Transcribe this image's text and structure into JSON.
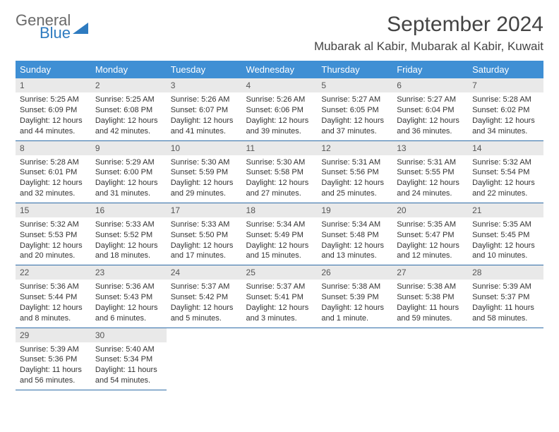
{
  "logo": {
    "word1": "General",
    "word2": "Blue",
    "text_color": "#6a6a6a",
    "accent_color": "#2e7bc0"
  },
  "title": {
    "month": "September 2024",
    "location": "Mubarak al Kabir, Mubarak al Kabir, Kuwait"
  },
  "theme": {
    "header_bg": "#3f8fd4",
    "header_fg": "#ffffff",
    "daynum_bg": "#e9e9e9",
    "row_border": "#2e6ca8"
  },
  "day_headers": [
    "Sunday",
    "Monday",
    "Tuesday",
    "Wednesday",
    "Thursday",
    "Friday",
    "Saturday"
  ],
  "days": [
    {
      "n": 1,
      "sr": "5:25 AM",
      "ss": "6:09 PM",
      "dl": "12 hours and 44 minutes."
    },
    {
      "n": 2,
      "sr": "5:25 AM",
      "ss": "6:08 PM",
      "dl": "12 hours and 42 minutes."
    },
    {
      "n": 3,
      "sr": "5:26 AM",
      "ss": "6:07 PM",
      "dl": "12 hours and 41 minutes."
    },
    {
      "n": 4,
      "sr": "5:26 AM",
      "ss": "6:06 PM",
      "dl": "12 hours and 39 minutes."
    },
    {
      "n": 5,
      "sr": "5:27 AM",
      "ss": "6:05 PM",
      "dl": "12 hours and 37 minutes."
    },
    {
      "n": 6,
      "sr": "5:27 AM",
      "ss": "6:04 PM",
      "dl": "12 hours and 36 minutes."
    },
    {
      "n": 7,
      "sr": "5:28 AM",
      "ss": "6:02 PM",
      "dl": "12 hours and 34 minutes."
    },
    {
      "n": 8,
      "sr": "5:28 AM",
      "ss": "6:01 PM",
      "dl": "12 hours and 32 minutes."
    },
    {
      "n": 9,
      "sr": "5:29 AM",
      "ss": "6:00 PM",
      "dl": "12 hours and 31 minutes."
    },
    {
      "n": 10,
      "sr": "5:30 AM",
      "ss": "5:59 PM",
      "dl": "12 hours and 29 minutes."
    },
    {
      "n": 11,
      "sr": "5:30 AM",
      "ss": "5:58 PM",
      "dl": "12 hours and 27 minutes."
    },
    {
      "n": 12,
      "sr": "5:31 AM",
      "ss": "5:56 PM",
      "dl": "12 hours and 25 minutes."
    },
    {
      "n": 13,
      "sr": "5:31 AM",
      "ss": "5:55 PM",
      "dl": "12 hours and 24 minutes."
    },
    {
      "n": 14,
      "sr": "5:32 AM",
      "ss": "5:54 PM",
      "dl": "12 hours and 22 minutes."
    },
    {
      "n": 15,
      "sr": "5:32 AM",
      "ss": "5:53 PM",
      "dl": "12 hours and 20 minutes."
    },
    {
      "n": 16,
      "sr": "5:33 AM",
      "ss": "5:52 PM",
      "dl": "12 hours and 18 minutes."
    },
    {
      "n": 17,
      "sr": "5:33 AM",
      "ss": "5:50 PM",
      "dl": "12 hours and 17 minutes."
    },
    {
      "n": 18,
      "sr": "5:34 AM",
      "ss": "5:49 PM",
      "dl": "12 hours and 15 minutes."
    },
    {
      "n": 19,
      "sr": "5:34 AM",
      "ss": "5:48 PM",
      "dl": "12 hours and 13 minutes."
    },
    {
      "n": 20,
      "sr": "5:35 AM",
      "ss": "5:47 PM",
      "dl": "12 hours and 12 minutes."
    },
    {
      "n": 21,
      "sr": "5:35 AM",
      "ss": "5:45 PM",
      "dl": "12 hours and 10 minutes."
    },
    {
      "n": 22,
      "sr": "5:36 AM",
      "ss": "5:44 PM",
      "dl": "12 hours and 8 minutes."
    },
    {
      "n": 23,
      "sr": "5:36 AM",
      "ss": "5:43 PM",
      "dl": "12 hours and 6 minutes."
    },
    {
      "n": 24,
      "sr": "5:37 AM",
      "ss": "5:42 PM",
      "dl": "12 hours and 5 minutes."
    },
    {
      "n": 25,
      "sr": "5:37 AM",
      "ss": "5:41 PM",
      "dl": "12 hours and 3 minutes."
    },
    {
      "n": 26,
      "sr": "5:38 AM",
      "ss": "5:39 PM",
      "dl": "12 hours and 1 minute."
    },
    {
      "n": 27,
      "sr": "5:38 AM",
      "ss": "5:38 PM",
      "dl": "11 hours and 59 minutes."
    },
    {
      "n": 28,
      "sr": "5:39 AM",
      "ss": "5:37 PM",
      "dl": "11 hours and 58 minutes."
    },
    {
      "n": 29,
      "sr": "5:39 AM",
      "ss": "5:36 PM",
      "dl": "11 hours and 56 minutes."
    },
    {
      "n": 30,
      "sr": "5:40 AM",
      "ss": "5:34 PM",
      "dl": "11 hours and 54 minutes."
    }
  ],
  "labels": {
    "sunrise": "Sunrise:",
    "sunset": "Sunset:",
    "daylight": "Daylight:"
  }
}
